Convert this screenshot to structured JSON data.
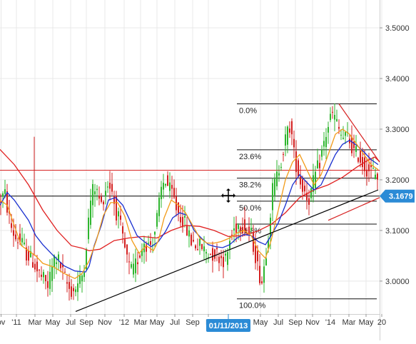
{
  "chart_data": {
    "type": "candlestick",
    "title": "",
    "xlabel": "",
    "ylabel": "",
    "ylim": [
      2.935,
      3.555
    ],
    "y_ticks": [
      3.0,
      3.1,
      3.2,
      3.3,
      3.4,
      3.5
    ],
    "y_tick_labels": [
      "3.0000",
      "3.1000",
      "3.2000",
      "3.3000",
      "3.4000",
      "3.5000"
    ],
    "x_ticks": [
      {
        "label": "ov",
        "t": 1.5
      },
      {
        "label": "'11",
        "t": 23
      },
      {
        "label": "Mar",
        "t": 49
      },
      {
        "label": "May",
        "t": 74
      },
      {
        "label": "Jul",
        "t": 99
      },
      {
        "label": "Sep",
        "t": 121
      },
      {
        "label": "Nov",
        "t": 147
      },
      {
        "label": "'12",
        "t": 174
      },
      {
        "label": "Mar",
        "t": 197
      },
      {
        "label": "May",
        "t": 220
      },
      {
        "label": "Jul",
        "t": 245
      },
      {
        "label": "Sep",
        "t": 270
      },
      {
        "label": "N",
        "t": 292
      },
      {
        "label": "May",
        "t": 365
      },
      {
        "label": "Jul",
        "t": 390
      },
      {
        "label": "Sep",
        "t": 414
      },
      {
        "label": "Nov",
        "t": 438
      },
      {
        "label": "'14",
        "t": 463
      },
      {
        "label": "Mar",
        "t": 489
      },
      {
        "label": "May",
        "t": 513
      },
      {
        "label": "20",
        "t": 535
      }
    ],
    "grid": true,
    "colors": {
      "up": "#2db52d",
      "down": "#d42020",
      "ma_red": "#e02020",
      "ma_orange": "#f29b18",
      "ma_blue": "#1a30d0",
      "grid": "#e8e8e8",
      "level_red": "#d62222",
      "level_black": "#000000",
      "price_badge": "#2b8bd6",
      "date_badge": "#2b8bd6"
    },
    "current_price": 3.1679,
    "current_price_label": "3.1679",
    "crosshair_date_label": "01/11/2013",
    "crosshair_t": 320,
    "horizontal_levels": [
      {
        "name": "resistance",
        "price": 3.219,
        "color": "red"
      },
      {
        "name": "support",
        "price": 3.1679,
        "color": "black"
      }
    ],
    "fibonacci": {
      "t_start": 332,
      "t_end": 528,
      "levels": [
        {
          "label": "0.0%",
          "price": 3.35
        },
        {
          "label": "23.6%",
          "price": 3.2593
        },
        {
          "label": "38.2%",
          "price": 3.2032
        },
        {
          "label": "50.0%",
          "price": 3.1578
        },
        {
          "label": "61.8%",
          "price": 3.1125
        },
        {
          "label": "100.0%",
          "price": 2.965
        }
      ]
    },
    "trendlines": [
      {
        "name": "rising-support",
        "t1": 106,
        "p1": 2.94,
        "t2": 530,
        "p2": 3.18,
        "color": "black"
      },
      {
        "name": "falling-resistance",
        "t1": 475,
        "p1": 3.35,
        "t2": 532,
        "p2": 3.235,
        "color": "red"
      },
      {
        "name": "rising-wedge",
        "t1": 460,
        "p1": 3.12,
        "t2": 532,
        "p2": 3.165,
        "color": "red"
      }
    ],
    "moving_averages": [
      {
        "name": "MA-red",
        "color": "red",
        "points": [
          [
            0,
            3.26
          ],
          [
            20,
            3.23
          ],
          [
            40,
            3.19
          ],
          [
            60,
            3.14
          ],
          [
            80,
            3.1
          ],
          [
            100,
            3.07
          ],
          [
            115,
            3.065
          ],
          [
            125,
            3.06
          ],
          [
            140,
            3.063
          ],
          [
            160,
            3.08
          ],
          [
            180,
            3.085
          ],
          [
            200,
            3.088
          ],
          [
            220,
            3.085
          ],
          [
            240,
            3.1
          ],
          [
            260,
            3.11
          ],
          [
            280,
            3.108
          ],
          [
            300,
            3.1
          ],
          [
            320,
            3.088
          ],
          [
            340,
            3.09
          ],
          [
            360,
            3.098
          ],
          [
            380,
            3.112
          ],
          [
            400,
            3.135
          ],
          [
            420,
            3.165
          ],
          [
            440,
            3.18
          ],
          [
            460,
            3.19
          ],
          [
            480,
            3.205
          ],
          [
            500,
            3.225
          ],
          [
            515,
            3.238
          ],
          [
            525,
            3.245
          ],
          [
            532,
            3.236
          ]
        ]
      },
      {
        "name": "MA-blue",
        "color": "blue",
        "points": [
          [
            0,
            3.15
          ],
          [
            10,
            3.175
          ],
          [
            20,
            3.16
          ],
          [
            30,
            3.14
          ],
          [
            40,
            3.12
          ],
          [
            50,
            3.09
          ],
          [
            60,
            3.072
          ],
          [
            75,
            3.05
          ],
          [
            90,
            3.03
          ],
          [
            105,
            3.02
          ],
          [
            120,
            3.018
          ],
          [
            125,
            3.03
          ],
          [
            132,
            3.07
          ],
          [
            142,
            3.11
          ],
          [
            152,
            3.16
          ],
          [
            162,
            3.165
          ],
          [
            172,
            3.15
          ],
          [
            182,
            3.12
          ],
          [
            192,
            3.09
          ],
          [
            202,
            3.078
          ],
          [
            212,
            3.068
          ],
          [
            222,
            3.078
          ],
          [
            232,
            3.098
          ],
          [
            242,
            3.125
          ],
          [
            252,
            3.135
          ],
          [
            262,
            3.13
          ],
          [
            272,
            3.1
          ],
          [
            282,
            3.085
          ],
          [
            292,
            3.072
          ],
          [
            302,
            3.068
          ],
          [
            312,
            3.066
          ],
          [
            322,
            3.072
          ],
          [
            332,
            3.085
          ],
          [
            342,
            3.092
          ],
          [
            352,
            3.09
          ],
          [
            362,
            3.078
          ],
          [
            372,
            3.072
          ],
          [
            380,
            3.09
          ],
          [
            390,
            3.115
          ],
          [
            400,
            3.15
          ],
          [
            410,
            3.19
          ],
          [
            420,
            3.21
          ],
          [
            430,
            3.195
          ],
          [
            440,
            3.18
          ],
          [
            450,
            3.19
          ],
          [
            460,
            3.22
          ],
          [
            470,
            3.25
          ],
          [
            480,
            3.27
          ],
          [
            490,
            3.278
          ],
          [
            500,
            3.268
          ],
          [
            510,
            3.255
          ],
          [
            520,
            3.24
          ],
          [
            530,
            3.23
          ]
        ]
      },
      {
        "name": "MA-orange",
        "color": "orange",
        "points": [
          [
            0,
            3.16
          ],
          [
            10,
            3.15
          ],
          [
            20,
            3.11
          ],
          [
            30,
            3.07
          ],
          [
            40,
            3.06
          ],
          [
            50,
            3.05
          ],
          [
            60,
            3.035
          ],
          [
            75,
            3.028
          ],
          [
            90,
            3.015
          ],
          [
            105,
            3.005
          ],
          [
            115,
            3.015
          ],
          [
            125,
            3.04
          ],
          [
            135,
            3.08
          ],
          [
            145,
            3.13
          ],
          [
            155,
            3.155
          ],
          [
            165,
            3.155
          ],
          [
            175,
            3.128
          ],
          [
            185,
            3.08
          ],
          [
            195,
            3.055
          ],
          [
            205,
            3.07
          ],
          [
            215,
            3.06
          ],
          [
            222,
            3.08
          ],
          [
            230,
            3.125
          ],
          [
            240,
            3.16
          ],
          [
            250,
            3.15
          ],
          [
            260,
            3.135
          ],
          [
            270,
            3.11
          ],
          [
            280,
            3.085
          ],
          [
            290,
            3.075
          ],
          [
            300,
            3.075
          ],
          [
            310,
            3.078
          ],
          [
            322,
            3.085
          ],
          [
            332,
            3.095
          ],
          [
            342,
            3.1
          ],
          [
            352,
            3.09
          ],
          [
            362,
            3.06
          ],
          [
            372,
            3.045
          ],
          [
            380,
            3.08
          ],
          [
            390,
            3.14
          ],
          [
            400,
            3.2
          ],
          [
            410,
            3.235
          ],
          [
            420,
            3.25
          ],
          [
            430,
            3.22
          ],
          [
            440,
            3.19
          ],
          [
            450,
            3.21
          ],
          [
            460,
            3.25
          ],
          [
            470,
            3.29
          ],
          [
            480,
            3.3
          ],
          [
            490,
            3.29
          ],
          [
            500,
            3.27
          ],
          [
            510,
            3.25
          ],
          [
            520,
            3.23
          ],
          [
            530,
            3.22
          ]
        ]
      }
    ],
    "price_path": [
      [
        0,
        3.15
      ],
      [
        5,
        3.165
      ],
      [
        10,
        3.17
      ],
      [
        15,
        3.13
      ],
      [
        20,
        3.1
      ],
      [
        25,
        3.085
      ],
      [
        30,
        3.08
      ],
      [
        35,
        3.07
      ],
      [
        40,
        3.055
      ],
      [
        45,
        3.045
      ],
      [
        50,
        3.038
      ],
      [
        55,
        3.02
      ],
      [
        60,
        3.01
      ],
      [
        65,
        3.0
      ],
      [
        70,
        2.99
      ],
      [
        75,
        3.02
      ],
      [
        80,
        3.05
      ],
      [
        85,
        3.04
      ],
      [
        90,
        3.02
      ],
      [
        95,
        3.0
      ],
      [
        100,
        2.985
      ],
      [
        105,
        2.98
      ],
      [
        110,
        2.99
      ],
      [
        115,
        3.0
      ],
      [
        120,
        3.02
      ],
      [
        125,
        3.09
      ],
      [
        130,
        3.16
      ],
      [
        135,
        3.19
      ],
      [
        140,
        3.17
      ],
      [
        145,
        3.15
      ],
      [
        150,
        3.18
      ],
      [
        155,
        3.195
      ],
      [
        160,
        3.18
      ],
      [
        165,
        3.14
      ],
      [
        170,
        3.12
      ],
      [
        175,
        3.08
      ],
      [
        180,
        3.05
      ],
      [
        185,
        3.02
      ],
      [
        190,
        3.02
      ],
      [
        195,
        3.04
      ],
      [
        200,
        3.06
      ],
      [
        205,
        3.08
      ],
      [
        210,
        3.07
      ],
      [
        215,
        3.075
      ],
      [
        220,
        3.1
      ],
      [
        225,
        3.14
      ],
      [
        230,
        3.19
      ],
      [
        235,
        3.2
      ],
      [
        240,
        3.18
      ],
      [
        245,
        3.17
      ],
      [
        250,
        3.145
      ],
      [
        255,
        3.13
      ],
      [
        260,
        3.12
      ],
      [
        265,
        3.1
      ],
      [
        270,
        3.08
      ],
      [
        275,
        3.075
      ],
      [
        280,
        3.07
      ],
      [
        285,
        3.068
      ],
      [
        290,
        3.06
      ],
      [
        295,
        3.055
      ],
      [
        300,
        3.055
      ],
      [
        305,
        3.055
      ],
      [
        310,
        3.05
      ],
      [
        315,
        3.045
      ],
      [
        320,
        3.04
      ],
      [
        325,
        3.08
      ],
      [
        330,
        3.1
      ],
      [
        335,
        3.11
      ],
      [
        340,
        3.115
      ],
      [
        345,
        3.11
      ],
      [
        350,
        3.1
      ],
      [
        355,
        3.09
      ],
      [
        360,
        3.06
      ],
      [
        365,
        3.02
      ],
      [
        370,
        3.0
      ],
      [
        375,
        3.05
      ],
      [
        380,
        3.11
      ],
      [
        385,
        3.18
      ],
      [
        390,
        3.2
      ],
      [
        395,
        3.23
      ],
      [
        400,
        3.26
      ],
      [
        405,
        3.29
      ],
      [
        410,
        3.31
      ],
      [
        415,
        3.25
      ],
      [
        420,
        3.22
      ],
      [
        425,
        3.19
      ],
      [
        430,
        3.18
      ],
      [
        435,
        3.16
      ],
      [
        440,
        3.18
      ],
      [
        445,
        3.21
      ],
      [
        450,
        3.23
      ],
      [
        455,
        3.26
      ],
      [
        460,
        3.29
      ],
      [
        465,
        3.32
      ],
      [
        470,
        3.33
      ],
      [
        475,
        3.31
      ],
      [
        480,
        3.29
      ],
      [
        485,
        3.28
      ],
      [
        490,
        3.285
      ],
      [
        495,
        3.27
      ],
      [
        500,
        3.25
      ],
      [
        505,
        3.25
      ],
      [
        510,
        3.235
      ],
      [
        515,
        3.225
      ],
      [
        520,
        3.22
      ],
      [
        525,
        3.215
      ],
      [
        530,
        3.21
      ]
    ]
  }
}
